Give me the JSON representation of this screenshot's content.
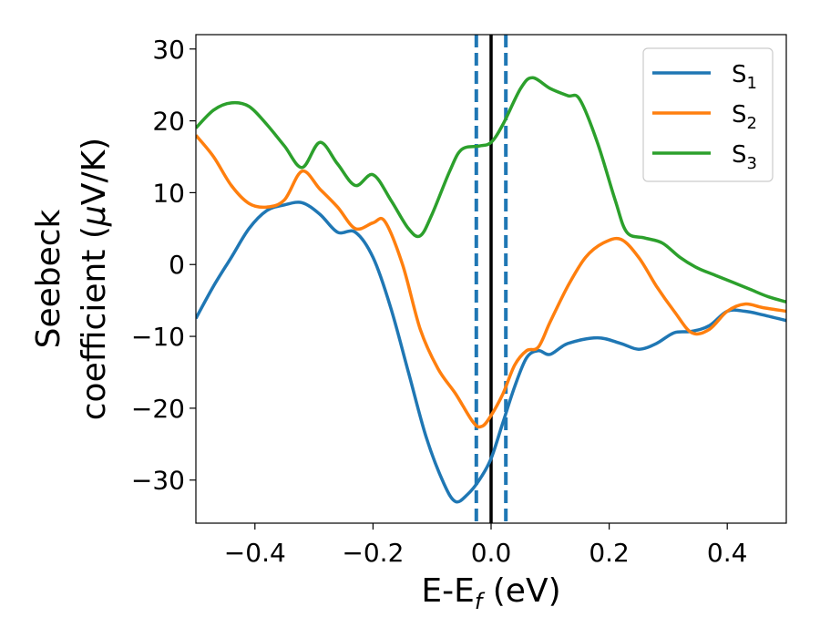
{
  "chart_data": {
    "type": "line",
    "xlabel": {
      "main": "E-E",
      "sub": "f",
      "tail": " (eV)"
    },
    "ylabel": {
      "line1": "Seebeck",
      "line2": "coefficient  (",
      "mu": "μ",
      "unit": "V/K)"
    },
    "xlim": [
      -0.5,
      0.5
    ],
    "ylim": [
      -36,
      32
    ],
    "xticks": [
      -0.4,
      -0.2,
      0.0,
      0.2,
      0.4
    ],
    "xtick_labels": [
      "−0.4",
      "−0.2",
      "0.0",
      "0.2",
      "0.4"
    ],
    "yticks": [
      -30,
      -20,
      -10,
      0,
      10,
      20,
      30
    ],
    "ytick_labels": [
      "−30",
      "−20",
      "−10",
      "0",
      "10",
      "20",
      "30"
    ],
    "grid": false,
    "legend_position": "top-right",
    "vlines": [
      {
        "x": 0.0,
        "color": "#000000",
        "style": "solid"
      },
      {
        "x": -0.025,
        "color": "#1f77b4",
        "style": "dashed"
      },
      {
        "x": 0.025,
        "color": "#1f77b4",
        "style": "dashed"
      }
    ],
    "series": [
      {
        "name": "S",
        "sub": "1",
        "color": "#1f77b4",
        "points": [
          [
            -0.5,
            -7.5
          ],
          [
            -0.47,
            -3
          ],
          [
            -0.44,
            1
          ],
          [
            -0.41,
            5
          ],
          [
            -0.38,
            7.5
          ],
          [
            -0.35,
            8.3
          ],
          [
            -0.32,
            8.6
          ],
          [
            -0.29,
            7
          ],
          [
            -0.26,
            4.5
          ],
          [
            -0.23,
            4.5
          ],
          [
            -0.2,
            1
          ],
          [
            -0.17,
            -6
          ],
          [
            -0.14,
            -15
          ],
          [
            -0.11,
            -24
          ],
          [
            -0.08,
            -30.5
          ],
          [
            -0.06,
            -33
          ],
          [
            -0.04,
            -32
          ],
          [
            -0.02,
            -30
          ],
          [
            0.0,
            -27
          ],
          [
            0.02,
            -22
          ],
          [
            0.04,
            -17
          ],
          [
            0.06,
            -13
          ],
          [
            0.08,
            -12
          ],
          [
            0.1,
            -12.5
          ],
          [
            0.13,
            -11
          ],
          [
            0.18,
            -10.2
          ],
          [
            0.22,
            -11
          ],
          [
            0.25,
            -11.8
          ],
          [
            0.28,
            -11
          ],
          [
            0.31,
            -9.5
          ],
          [
            0.34,
            -9.3
          ],
          [
            0.37,
            -8.5
          ],
          [
            0.4,
            -6.5
          ],
          [
            0.43,
            -6.5
          ],
          [
            0.46,
            -7
          ],
          [
            0.5,
            -7.8
          ]
        ]
      },
      {
        "name": "S",
        "sub": "2",
        "color": "#ff7f0e",
        "points": [
          [
            -0.5,
            18
          ],
          [
            -0.47,
            15
          ],
          [
            -0.44,
            11
          ],
          [
            -0.41,
            8.5
          ],
          [
            -0.38,
            8
          ],
          [
            -0.35,
            9
          ],
          [
            -0.32,
            13
          ],
          [
            -0.29,
            10.5
          ],
          [
            -0.26,
            8
          ],
          [
            -0.23,
            5
          ],
          [
            -0.2,
            5.8
          ],
          [
            -0.18,
            6
          ],
          [
            -0.15,
            0
          ],
          [
            -0.12,
            -9
          ],
          [
            -0.09,
            -14.5
          ],
          [
            -0.06,
            -18
          ],
          [
            -0.03,
            -22
          ],
          [
            -0.015,
            -22.5
          ],
          [
            0.0,
            -21
          ],
          [
            0.02,
            -18
          ],
          [
            0.04,
            -14
          ],
          [
            0.06,
            -12
          ],
          [
            0.08,
            -11.5
          ],
          [
            0.1,
            -8
          ],
          [
            0.13,
            -3
          ],
          [
            0.16,
            1
          ],
          [
            0.19,
            3
          ],
          [
            0.22,
            3.5
          ],
          [
            0.25,
            1
          ],
          [
            0.28,
            -3
          ],
          [
            0.31,
            -6.5
          ],
          [
            0.34,
            -9.5
          ],
          [
            0.37,
            -9
          ],
          [
            0.4,
            -6.5
          ],
          [
            0.43,
            -5.5
          ],
          [
            0.46,
            -6
          ],
          [
            0.5,
            -6.5
          ]
        ]
      },
      {
        "name": "S",
        "sub": "3",
        "color": "#2ca02c",
        "points": [
          [
            -0.5,
            19
          ],
          [
            -0.47,
            21.5
          ],
          [
            -0.44,
            22.5
          ],
          [
            -0.41,
            22
          ],
          [
            -0.38,
            19.5
          ],
          [
            -0.35,
            16.5
          ],
          [
            -0.32,
            13.5
          ],
          [
            -0.29,
            17
          ],
          [
            -0.26,
            14
          ],
          [
            -0.23,
            11
          ],
          [
            -0.2,
            12.5
          ],
          [
            -0.17,
            9
          ],
          [
            -0.14,
            5
          ],
          [
            -0.12,
            4
          ],
          [
            -0.1,
            7
          ],
          [
            -0.07,
            13
          ],
          [
            -0.05,
            16
          ],
          [
            -0.02,
            16.5
          ],
          [
            0.0,
            17
          ],
          [
            0.02,
            19.5
          ],
          [
            0.05,
            24.5
          ],
          [
            0.07,
            26
          ],
          [
            0.1,
            24.5
          ],
          [
            0.13,
            23.5
          ],
          [
            0.15,
            23
          ],
          [
            0.18,
            17
          ],
          [
            0.21,
            9
          ],
          [
            0.23,
            4.5
          ],
          [
            0.26,
            3.7
          ],
          [
            0.29,
            3
          ],
          [
            0.32,
            1
          ],
          [
            0.35,
            -0.5
          ],
          [
            0.38,
            -1.5
          ],
          [
            0.41,
            -2.5
          ],
          [
            0.44,
            -3.5
          ],
          [
            0.47,
            -4.5
          ],
          [
            0.5,
            -5.2
          ]
        ]
      }
    ]
  }
}
